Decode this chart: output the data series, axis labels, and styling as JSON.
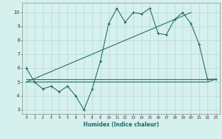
{
  "xlabel": "Humidex (Indice chaleur)",
  "xlim": [
    -0.5,
    23.5
  ],
  "ylim": [
    2.7,
    10.7
  ],
  "yticks": [
    3,
    4,
    5,
    6,
    7,
    8,
    9,
    10
  ],
  "xticks": [
    0,
    1,
    2,
    3,
    4,
    5,
    6,
    7,
    8,
    9,
    10,
    11,
    12,
    13,
    14,
    15,
    16,
    17,
    18,
    19,
    20,
    21,
    22,
    23
  ],
  "background_color": "#d6f0ed",
  "grid_color": "#b8dbd7",
  "line_color": "#1e6b65",
  "series1_x": [
    0,
    1,
    2,
    3,
    4,
    5,
    6,
    7,
    8,
    9,
    10,
    11,
    12,
    13,
    14,
    15,
    16,
    17,
    18,
    19,
    20,
    21,
    22,
    23
  ],
  "series1_y": [
    6.0,
    5.0,
    4.5,
    4.7,
    4.3,
    4.7,
    4.0,
    3.0,
    4.5,
    6.5,
    9.2,
    10.3,
    9.3,
    10.0,
    9.9,
    10.3,
    8.5,
    8.4,
    9.5,
    10.0,
    9.2,
    7.7,
    5.2,
    5.2
  ],
  "series2_x": [
    0,
    22,
    23
  ],
  "series2_y": [
    5.0,
    5.0,
    5.2
  ],
  "series3_x": [
    0,
    20
  ],
  "series3_y": [
    5.0,
    10.0
  ],
  "series4_x": [
    0,
    23
  ],
  "series4_y": [
    5.2,
    5.2
  ]
}
